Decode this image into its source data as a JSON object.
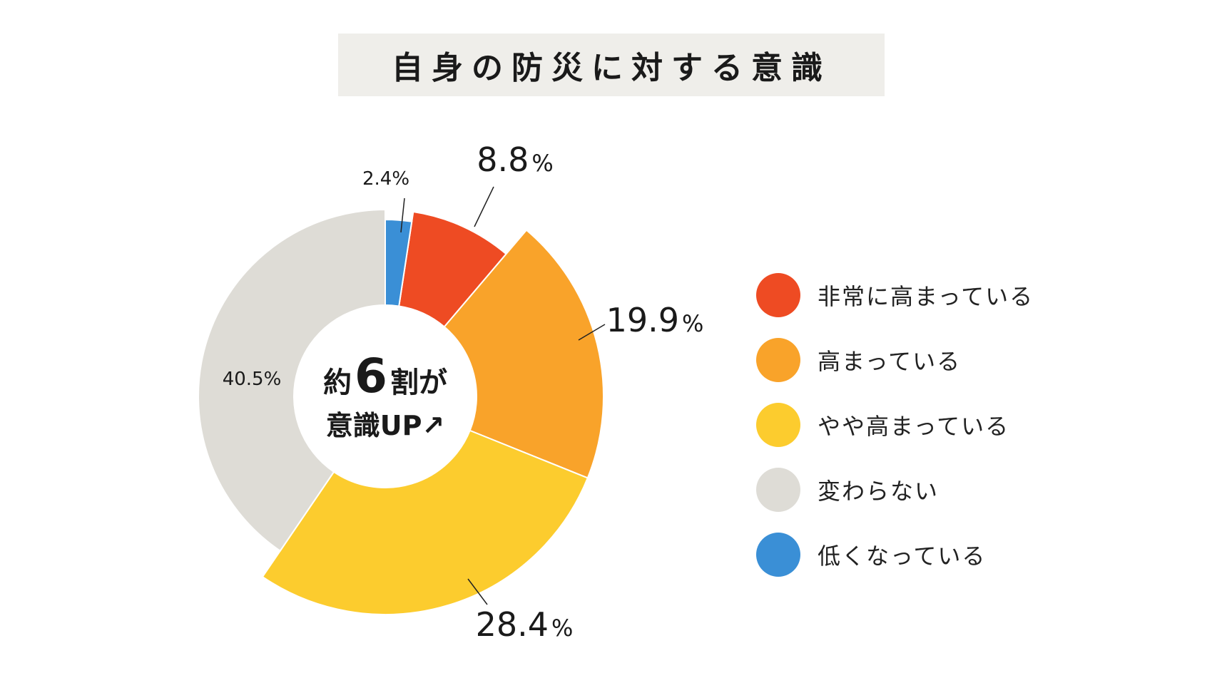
{
  "chart_data": {
    "type": "pie",
    "title": "自身の防災に対する意識",
    "center_text": {
      "line1_a": "約",
      "line1_num": "6",
      "line1_b": "割が",
      "line2": "意識UP↗"
    },
    "series": [
      {
        "name": "非常に高まっている",
        "value": 8.8,
        "color": "#ee4b23",
        "label": "8.8",
        "unit": "%"
      },
      {
        "name": "高まっている",
        "value": 19.9,
        "color": "#f9a32a",
        "label": "19.9",
        "unit": "%"
      },
      {
        "name": "やや高まっている",
        "value": 28.4,
        "color": "#fccc2e",
        "label": "28.4",
        "unit": "%"
      },
      {
        "name": "変わらない",
        "value": 40.5,
        "color": "#dedcd6",
        "label": "40.5%",
        "unit": ""
      },
      {
        "name": "低くなっている",
        "value": 2.4,
        "color": "#3a8fd6",
        "label": "2.4%",
        "unit": ""
      }
    ]
  }
}
